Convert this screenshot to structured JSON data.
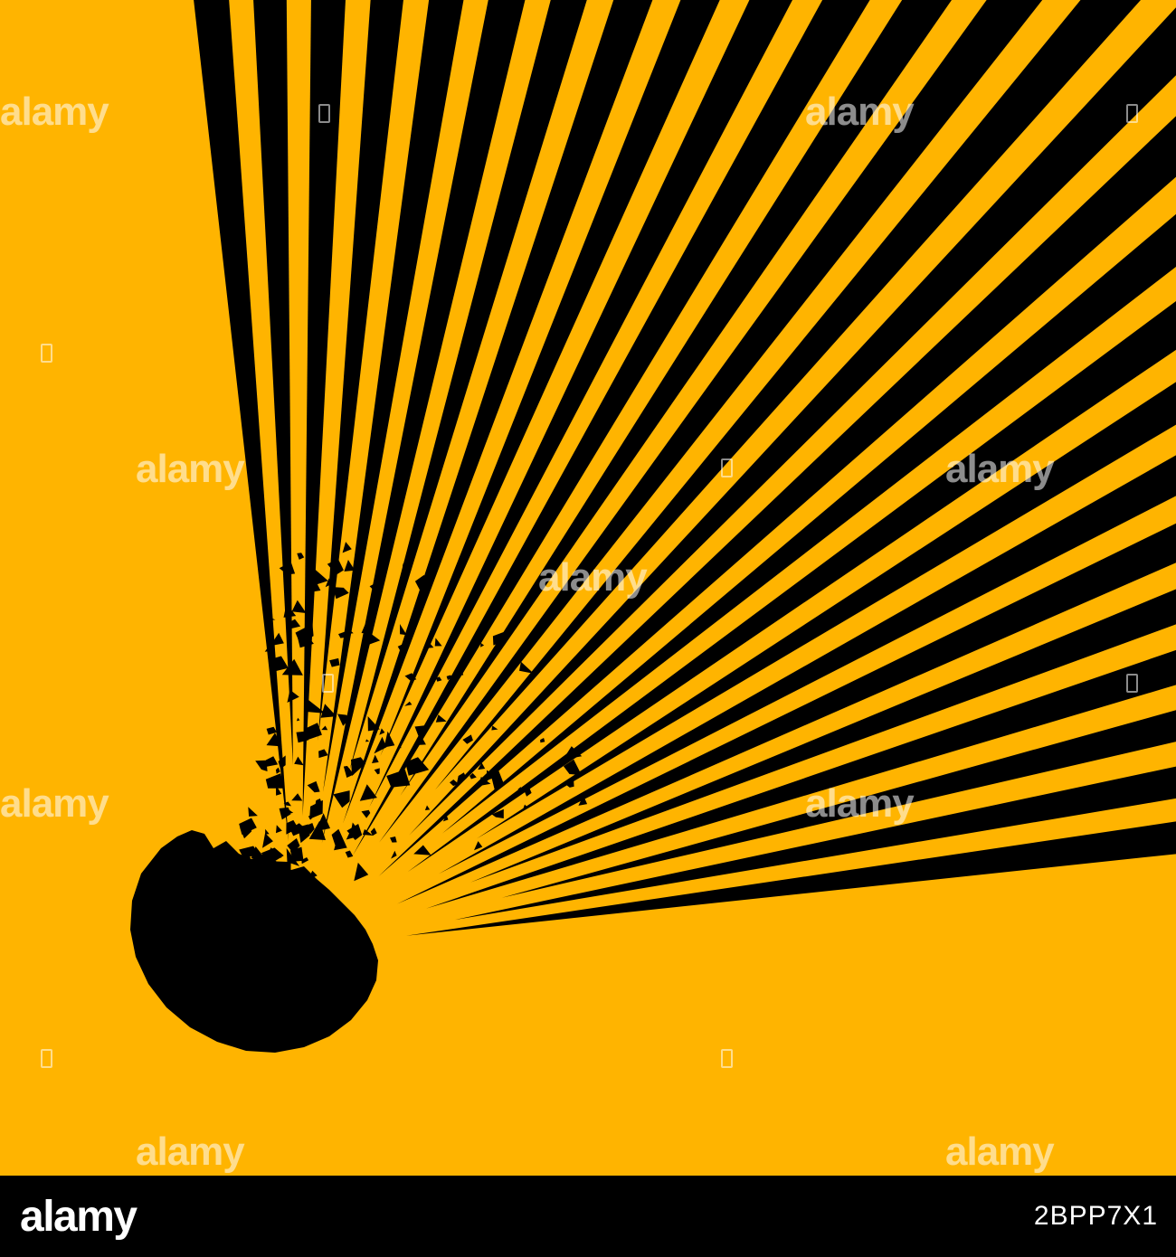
{
  "colors": {
    "background": "#FFB400",
    "ink": "#000000",
    "footer": "#000000",
    "footer_text": "#FFFFFF"
  },
  "watermark": {
    "text": "alamy"
  },
  "footer": {
    "logo": "alamy",
    "image_id": "2BPP7X1"
  }
}
